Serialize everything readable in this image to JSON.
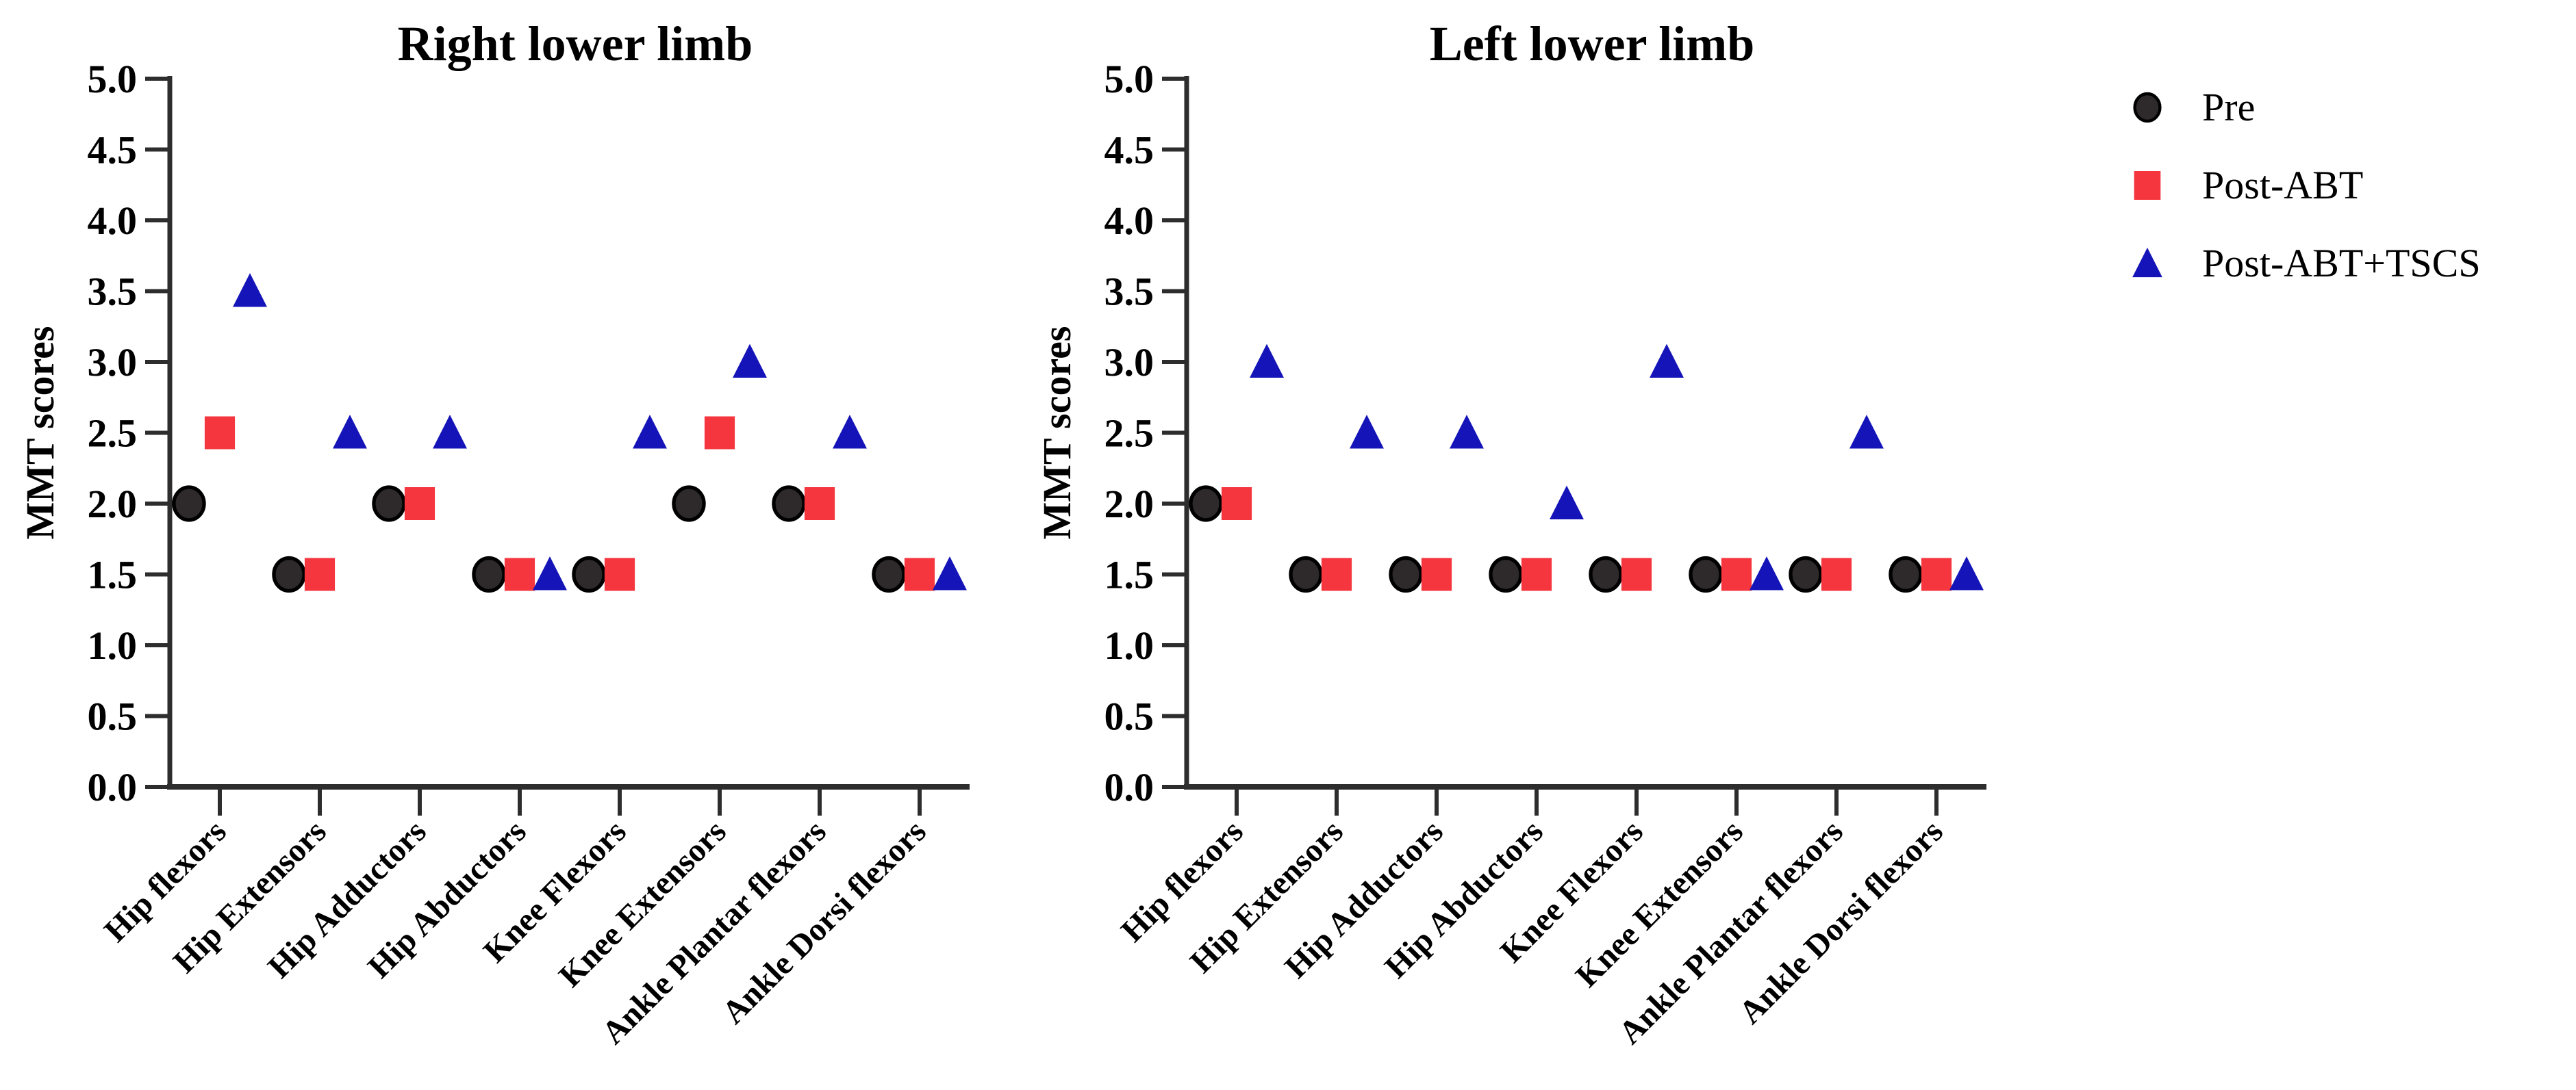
{
  "figure": {
    "background": "#ffffff",
    "text_color": "#000000",
    "axis_color": "#2d2d2d"
  },
  "legend": {
    "position": "right-of-figure",
    "items": [
      {
        "label": "Pre",
        "marker": "circle",
        "color": "#2e2a2b",
        "outline": "#000000"
      },
      {
        "label": "Post-ABT",
        "marker": "square",
        "color": "#f5363e",
        "outline": "none"
      },
      {
        "label": "Post-ABT+TSCS",
        "marker": "triangle",
        "color": "#1414b8",
        "outline": "none"
      }
    ]
  },
  "chart_data": [
    {
      "type": "scatter",
      "title": "Right lower limb",
      "xlabel": "",
      "ylabel": "MMT scores",
      "ylim": [
        0.0,
        5.0
      ],
      "ytick_step": 0.5,
      "ytick_labels": [
        "5.0",
        "4.5",
        "4.0",
        "3.5",
        "3.0",
        "2.5",
        "2.0",
        "1.5",
        "1.0",
        "0.5",
        "0.0"
      ],
      "grid": false,
      "categories": [
        "Hip flexors",
        "Hip Extensors",
        "Hip Adductors",
        "Hip Abductors",
        "Knee Flexors",
        "Knee Extensors",
        "Ankle Plantar flexors",
        "Ankle Dorsi flexors"
      ],
      "series": [
        {
          "name": "Pre",
          "marker": "circle",
          "color": "#2e2a2b",
          "values": [
            2.0,
            1.5,
            2.0,
            1.5,
            1.5,
            2.0,
            2.0,
            1.5
          ]
        },
        {
          "name": "Post-ABT",
          "marker": "square",
          "color": "#f5363e",
          "values": [
            2.5,
            1.5,
            2.0,
            1.5,
            1.5,
            2.5,
            2.0,
            1.5
          ]
        },
        {
          "name": "Post-ABT+TSCS",
          "marker": "triangle",
          "color": "#1414b8",
          "values": [
            3.5,
            2.5,
            2.5,
            1.5,
            2.5,
            3.0,
            2.5,
            1.5
          ]
        }
      ]
    },
    {
      "type": "scatter",
      "title": "Left lower limb",
      "xlabel": "",
      "ylabel": "MMT scores",
      "ylim": [
        0.0,
        5.0
      ],
      "ytick_step": 0.5,
      "ytick_labels": [
        "5.0",
        "4.5",
        "4.0",
        "3.5",
        "3.0",
        "2.5",
        "2.0",
        "1.5",
        "1.0",
        "0.5",
        "0.0"
      ],
      "grid": false,
      "categories": [
        "Hip flexors",
        "Hip Extensors",
        "Hip Adductors",
        "Hip Abductors",
        "Knee Flexors",
        "Knee Extensors",
        "Ankle Plantar flexors",
        "Ankle Dorsi flexors"
      ],
      "series": [
        {
          "name": "Pre",
          "marker": "circle",
          "color": "#2e2a2b",
          "values": [
            2.0,
            1.5,
            1.5,
            1.5,
            1.5,
            1.5,
            1.5,
            1.5
          ]
        },
        {
          "name": "Post-ABT",
          "marker": "square",
          "color": "#f5363e",
          "values": [
            2.0,
            1.5,
            1.5,
            1.5,
            1.5,
            1.5,
            1.5,
            1.5
          ]
        },
        {
          "name": "Post-ABT+TSCS",
          "marker": "triangle",
          "color": "#1414b8",
          "values": [
            3.0,
            2.5,
            2.5,
            2.0,
            3.0,
            1.5,
            2.5,
            1.5
          ]
        }
      ]
    }
  ]
}
